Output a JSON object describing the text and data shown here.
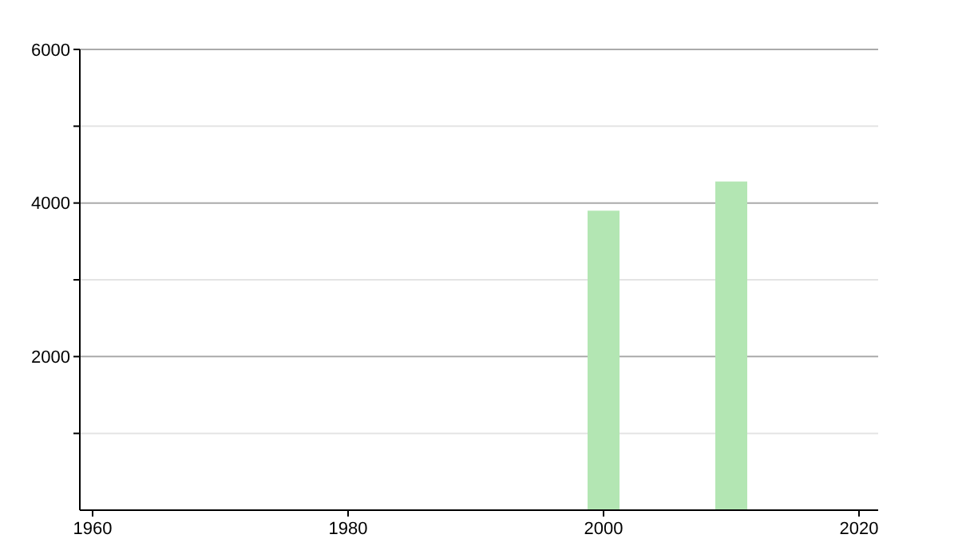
{
  "chart_data": {
    "type": "bar",
    "x": [
      2000,
      2010
    ],
    "values": [
      3900,
      4280
    ],
    "color": "#b3e6b3",
    "xlim": [
      1959,
      2021.5
    ],
    "xticks": [
      1960,
      1980,
      2000,
      2020
    ],
    "ylim": [
      0,
      6000
    ],
    "yticks": [
      {
        "value": 1000,
        "label": null
      },
      2000,
      {
        "value": 3000,
        "label": null
      },
      4000,
      {
        "value": 5000,
        "label": null
      },
      6000
    ],
    "grid": "y"
  }
}
